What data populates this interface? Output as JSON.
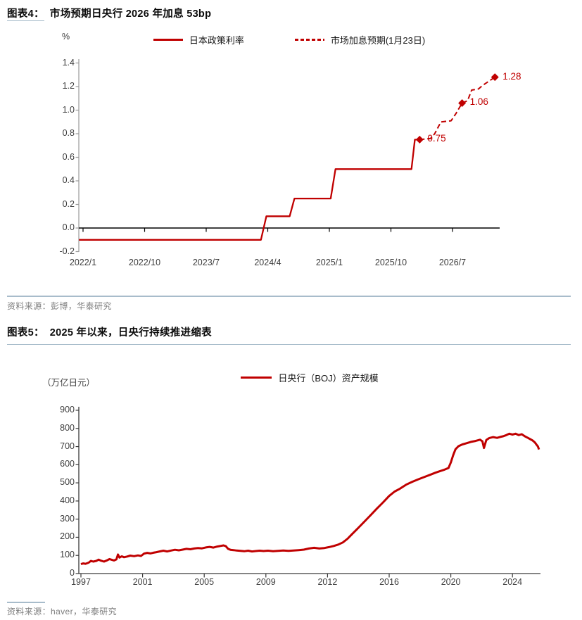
{
  "colors": {
    "accent_red": "#C00000",
    "divider_blue": "#A8BCCB",
    "axis_dark": "#3a3a3a",
    "axis_light": "#9a9a9a",
    "tick_label": "#3d3d3d",
    "source_gray": "#7e7e7e"
  },
  "figure4": {
    "label": "图表4：",
    "title": "市场预期日央行 2026 年加息 53bp",
    "y_unit": "%",
    "legend": [
      {
        "label": "日本政策利率",
        "style": "solid"
      },
      {
        "label": "市场加息预期(1月23日)",
        "style": "dashed"
      }
    ],
    "source": "资料来源：彭博，华泰研究"
  },
  "figure5": {
    "label": "图表5：",
    "title": "2025 年以来，日央行持续推进缩表",
    "y_unit": "（万亿日元）",
    "legend": [
      {
        "label": "日央行（BOJ）资产规模",
        "style": "solid"
      }
    ],
    "source": "资料来源：haver，华泰研究"
  },
  "chart_data": [
    {
      "type": "line",
      "title": "市场预期日央行 2026 年加息 53bp",
      "ylabel": "%",
      "ylim": [
        -0.2,
        1.4
      ],
      "yticks": [
        -0.2,
        0.0,
        0.2,
        0.4,
        0.6,
        0.8,
        1.0,
        1.2,
        1.4
      ],
      "x_unit": "months_since_2022_01",
      "xticks": [
        {
          "m": 0,
          "label": "2022/1"
        },
        {
          "m": 9,
          "label": "2022/10"
        },
        {
          "m": 18,
          "label": "2023/7"
        },
        {
          "m": 27,
          "label": "2024/4"
        },
        {
          "m": 36,
          "label": "2025/1"
        },
        {
          "m": 45,
          "label": "2025/10"
        },
        {
          "m": 54,
          "label": "2026/7"
        }
      ],
      "legend_position": "top-center",
      "grid": false,
      "series": [
        {
          "name": "日本政策利率",
          "style": "solid",
          "points": [
            [
              -0.6,
              -0.1
            ],
            [
              26.0,
              -0.1
            ],
            [
              26.8,
              0.1
            ],
            [
              30.2,
              0.1
            ],
            [
              30.9,
              0.25
            ],
            [
              36.2,
              0.25
            ],
            [
              36.9,
              0.5
            ],
            [
              48.0,
              0.5
            ],
            [
              48.5,
              0.75
            ],
            [
              49.2,
              0.75
            ]
          ]
        },
        {
          "name": "市场加息预期(1月23日)",
          "style": "dashed",
          "points": [
            [
              49.2,
              0.75
            ],
            [
              50.8,
              0.76
            ],
            [
              51.4,
              0.8
            ],
            [
              52.3,
              0.9
            ],
            [
              53.8,
              0.91
            ],
            [
              54.5,
              0.97
            ],
            [
              55.4,
              1.06
            ],
            [
              56.2,
              1.08
            ],
            [
              56.8,
              1.17
            ],
            [
              57.8,
              1.18
            ],
            [
              58.4,
              1.21
            ],
            [
              60.2,
              1.28
            ]
          ],
          "markers": [
            {
              "m": 49.2,
              "v": 0.75,
              "label": "0.75"
            },
            {
              "m": 55.4,
              "v": 1.06,
              "label": "1.06"
            },
            {
              "m": 60.2,
              "v": 1.28,
              "label": "1.28"
            }
          ]
        }
      ]
    },
    {
      "type": "line",
      "title": "2025 年以来，日央行持续推进缩表",
      "ylabel": "（万亿日元）",
      "ylim": [
        0,
        900
      ],
      "yticks": [
        0,
        100,
        200,
        300,
        400,
        500,
        600,
        700,
        800,
        900
      ],
      "xtick_years": [
        1997,
        2001,
        2005,
        2009,
        2012,
        2016,
        2020,
        2024
      ],
      "xtick_labels": [
        "1997",
        "2001",
        "2005",
        "2009",
        "2012",
        "2016",
        "2020",
        "2024"
      ],
      "legend_position": "top-center",
      "grid": false,
      "series": [
        {
          "name": "日央行（BOJ）资产规模",
          "style": "solid",
          "points": [
            [
              1997.0,
              52
            ],
            [
              1997.15,
              56
            ],
            [
              1997.3,
              54
            ],
            [
              1997.5,
              60
            ],
            [
              1997.65,
              70
            ],
            [
              1997.8,
              66
            ],
            [
              1998.0,
              70
            ],
            [
              1998.15,
              77
            ],
            [
              1998.3,
              71
            ],
            [
              1998.5,
              66
            ],
            [
              1998.7,
              73
            ],
            [
              1998.85,
              80
            ],
            [
              1999.0,
              76
            ],
            [
              1999.15,
              72
            ],
            [
              1999.3,
              78
            ],
            [
              1999.4,
              105
            ],
            [
              1999.5,
              88
            ],
            [
              1999.65,
              95
            ],
            [
              1999.8,
              90
            ],
            [
              2000.0,
              94
            ],
            [
              2000.2,
              99
            ],
            [
              2000.45,
              96
            ],
            [
              2000.7,
              100
            ],
            [
              2000.9,
              97
            ],
            [
              2001.1,
              110
            ],
            [
              2001.3,
              114
            ],
            [
              2001.5,
              111
            ],
            [
              2001.7,
              115
            ],
            [
              2001.9,
              118
            ],
            [
              2002.1,
              122
            ],
            [
              2002.35,
              126
            ],
            [
              2002.6,
              122
            ],
            [
              2002.85,
              127
            ],
            [
              2003.1,
              131
            ],
            [
              2003.35,
              128
            ],
            [
              2003.6,
              132
            ],
            [
              2003.85,
              136
            ],
            [
              2004.1,
              134
            ],
            [
              2004.35,
              138
            ],
            [
              2004.6,
              141
            ],
            [
              2004.85,
              139
            ],
            [
              2005.1,
              144
            ],
            [
              2005.35,
              147
            ],
            [
              2005.6,
              143
            ],
            [
              2005.85,
              149
            ],
            [
              2006.05,
              152
            ],
            [
              2006.25,
              155
            ],
            [
              2006.4,
              151
            ],
            [
              2006.55,
              136
            ],
            [
              2006.7,
              131
            ],
            [
              2006.9,
              129
            ],
            [
              2007.1,
              127
            ],
            [
              2007.35,
              125
            ],
            [
              2007.6,
              123
            ],
            [
              2007.85,
              126
            ],
            [
              2008.1,
              122
            ],
            [
              2008.35,
              124
            ],
            [
              2008.6,
              126
            ],
            [
              2008.85,
              124
            ],
            [
              2009.1,
              126
            ],
            [
              2009.35,
              123
            ],
            [
              2009.6,
              125
            ],
            [
              2009.85,
              127
            ],
            [
              2010.1,
              125
            ],
            [
              2010.35,
              127
            ],
            [
              2010.6,
              129
            ],
            [
              2010.85,
              132
            ],
            [
              2011.1,
              138
            ],
            [
              2011.35,
              142
            ],
            [
              2011.6,
              138
            ],
            [
              2011.85,
              141
            ],
            [
              2012.1,
              146
            ],
            [
              2012.4,
              152
            ],
            [
              2012.7,
              160
            ],
            [
              2013.0,
              172
            ],
            [
              2013.3,
              192
            ],
            [
              2013.6,
              218
            ],
            [
              2014.0,
              252
            ],
            [
              2014.4,
              287
            ],
            [
              2014.8,
              322
            ],
            [
              2015.2,
              358
            ],
            [
              2015.6,
              392
            ],
            [
              2016.0,
              428
            ],
            [
              2016.35,
              452
            ],
            [
              2016.7,
              468
            ],
            [
              2017.1,
              490
            ],
            [
              2017.5,
              506
            ],
            [
              2017.9,
              520
            ],
            [
              2018.3,
              533
            ],
            [
              2018.7,
              546
            ],
            [
              2019.0,
              556
            ],
            [
              2019.3,
              565
            ],
            [
              2019.6,
              573
            ],
            [
              2019.85,
              582
            ],
            [
              2020.0,
              612
            ],
            [
              2020.15,
              652
            ],
            [
              2020.3,
              685
            ],
            [
              2020.5,
              702
            ],
            [
              2020.75,
              712
            ],
            [
              2021.0,
              718
            ],
            [
              2021.3,
              726
            ],
            [
              2021.6,
              731
            ],
            [
              2021.9,
              738
            ],
            [
              2022.05,
              729
            ],
            [
              2022.15,
              692
            ],
            [
              2022.3,
              736
            ],
            [
              2022.5,
              747
            ],
            [
              2022.75,
              752
            ],
            [
              2023.0,
              748
            ],
            [
              2023.2,
              753
            ],
            [
              2023.4,
              757
            ],
            [
              2023.6,
              763
            ],
            [
              2023.8,
              771
            ],
            [
              2024.0,
              766
            ],
            [
              2024.2,
              771
            ],
            [
              2024.4,
              763
            ],
            [
              2024.6,
              768
            ],
            [
              2024.8,
              757
            ],
            [
              2025.0,
              748
            ],
            [
              2025.15,
              741
            ],
            [
              2025.3,
              734
            ],
            [
              2025.45,
              723
            ],
            [
              2025.55,
              712
            ],
            [
              2025.65,
              701
            ],
            [
              2025.72,
              684
            ]
          ]
        }
      ]
    }
  ]
}
